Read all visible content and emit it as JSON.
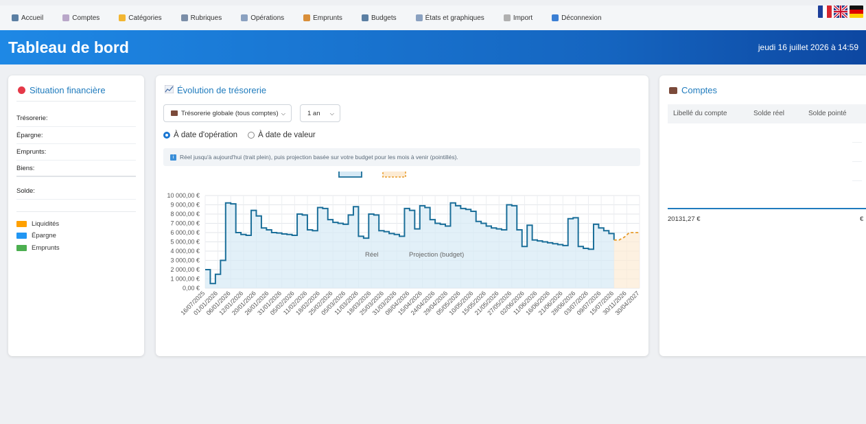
{
  "nav": {
    "items": [
      {
        "label": "Accueil",
        "icon": "bar-chart-icon",
        "color": "#5b7fa3"
      },
      {
        "label": "Comptes",
        "icon": "card-icon",
        "color": "#b9a7c9"
      },
      {
        "label": "Catégories",
        "icon": "folder-icon",
        "color": "#f2b632"
      },
      {
        "label": "Rubriques",
        "icon": "cabinet-icon",
        "color": "#7b8ea8"
      },
      {
        "label": "Opérations",
        "icon": "chart-icon",
        "color": "#8aa1c0"
      },
      {
        "label": "Emprunts",
        "icon": "moneybag-icon",
        "color": "#d98f3a"
      },
      {
        "label": "Budgets",
        "icon": "bar-chart-icon",
        "color": "#5b7fa3"
      },
      {
        "label": "États et graphiques",
        "icon": "chart-icon",
        "color": "#8aa1c0"
      },
      {
        "label": "Import",
        "icon": "pen-icon",
        "color": "#b0b0b0"
      },
      {
        "label": "Déconnexion",
        "icon": "exit-icon",
        "color": "#3b7fd4"
      }
    ]
  },
  "header": {
    "title": "Tableau de bord",
    "date": "jeudi 16 juillet 2026 à 14:59"
  },
  "situation": {
    "title": "Situation financière",
    "rows": [
      "Trésorerie:",
      "Épargne:",
      "Emprunts:",
      "Biens:"
    ],
    "solde_label": "Solde:",
    "legend": [
      {
        "label": "Liquidités",
        "color": "#ffa000"
      },
      {
        "label": "Épargne",
        "color": "#2196f3"
      },
      {
        "label": "Emprunts",
        "color": "#4caf50"
      }
    ]
  },
  "evolution": {
    "title": "Évolution de trésorerie",
    "account_select": "Trésorerie globale (tous comptes)",
    "period_select": "1 an",
    "radio_operation": "À date d'opération",
    "radio_valeur": "À date de valeur",
    "info": "Réel jusqu'à aujourd'hui (trait plein), puis projection basée sur votre budget pour les mois à venir (pointillés)."
  },
  "chart_data": {
    "type": "line",
    "legend": [
      "Réel",
      "Projection (budget)"
    ],
    "ylim": [
      0,
      10000
    ],
    "yticks": [
      "0,00 €",
      "1 000,00 €",
      "2 000,00 €",
      "3 000,00 €",
      "4 000,00 €",
      "5 000,00 €",
      "6 000,00 €",
      "7 000,00 €",
      "8 000,00 €",
      "9 000,00 €",
      "10 000,00 €"
    ],
    "xticks": [
      "16/07/2025",
      "01/01/2026",
      "06/01/2026",
      "12/01/2026",
      "20/01/2026",
      "26/01/2026",
      "31/01/2026",
      "05/02/2026",
      "11/02/2026",
      "18/02/2026",
      "25/02/2026",
      "05/03/2026",
      "11/03/2026",
      "18/03/2026",
      "25/03/2026",
      "31/03/2026",
      "08/04/2026",
      "15/04/2026",
      "24/04/2026",
      "29/04/2026",
      "05/05/2026",
      "10/05/2026",
      "15/05/2026",
      "21/05/2026",
      "27/05/2026",
      "02/06/2026",
      "11/06/2026",
      "16/06/2026",
      "21/06/2026",
      "28/06/2026",
      "03/07/2026",
      "09/07/2026",
      "15/07/2026",
      "30/11/2026",
      "30/04/2027"
    ],
    "series": [
      {
        "name": "Réel",
        "color": "#1a6e99",
        "values": [
          2000,
          500,
          1500,
          3000,
          9200,
          9100,
          6000,
          5800,
          5700,
          8400,
          7800,
          6500,
          6300,
          6000,
          5950,
          5850,
          5800,
          5700,
          8000,
          7900,
          6300,
          6200,
          8700,
          8600,
          7400,
          7100,
          7000,
          6900,
          7900,
          8800,
          5600,
          5400,
          8000,
          7900,
          6200,
          6100,
          5900,
          5800,
          5600,
          8600,
          8400,
          6400,
          8900,
          8700,
          7400,
          7000,
          6900,
          6700,
          9200,
          8900,
          8600,
          8500,
          8300,
          7200,
          7000,
          6700,
          6500,
          6400,
          6300,
          9000,
          8900,
          6300,
          4500,
          6800,
          5200,
          5100,
          5000,
          4900,
          4800,
          4700,
          4600,
          7500,
          7600,
          4500,
          4300,
          4200,
          6900,
          6500,
          6200,
          5900,
          5200
        ]
      },
      {
        "name": "Projection (budget)",
        "color": "#e89b2a",
        "values": [
          5200,
          5200,
          5500,
          6000,
          6000,
          6000
        ]
      }
    ]
  },
  "comptes": {
    "title": "Comptes",
    "columns": [
      "Libellé du compte",
      "Solde réel",
      "Solde pointé"
    ],
    "total": "20131,27 €",
    "total_right": "€"
  }
}
